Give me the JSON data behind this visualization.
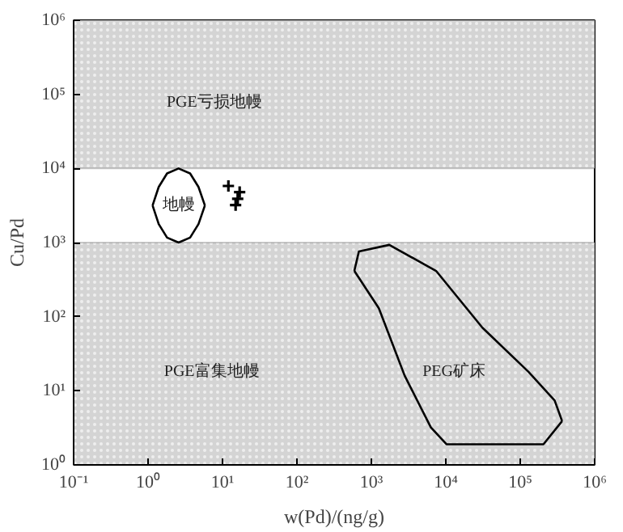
{
  "chart_data": {
    "type": "scatter",
    "xlabel": "w(Pd)/(ng/g)",
    "ylabel": "Cu/Pd",
    "log": "xy",
    "grid": false,
    "marker": "cross",
    "xlim": [
      0.1,
      1000000
    ],
    "ylim": [
      1,
      1000000
    ],
    "xticks": [
      {
        "value": 0.1,
        "label": "10⁻¹"
      },
      {
        "value": 1,
        "label": "10⁰"
      },
      {
        "value": 10,
        "label": "10¹"
      },
      {
        "value": 100,
        "label": "10²"
      },
      {
        "value": 1000,
        "label": "10³"
      },
      {
        "value": 10000,
        "label": "10⁴"
      },
      {
        "value": 100000,
        "label": "10⁵"
      },
      {
        "value": 1000000,
        "label": "10⁶"
      }
    ],
    "yticks": [
      {
        "value": 1,
        "label": "10⁰"
      },
      {
        "value": 10,
        "label": "10¹"
      },
      {
        "value": 100,
        "label": "10²"
      },
      {
        "value": 1000,
        "label": "10³"
      },
      {
        "value": 10000,
        "label": "10⁴"
      },
      {
        "value": 100000,
        "label": "10⁵"
      },
      {
        "value": 1000000,
        "label": "10⁶"
      }
    ],
    "bands": [
      {
        "axis": "y",
        "from": 10000,
        "to": 1000000,
        "color": "#d4d4d4"
      },
      {
        "axis": "y",
        "from": 1,
        "to": 1000,
        "color": "#d4d4d4"
      }
    ],
    "series": [
      {
        "color": "#000000",
        "x": [
          12,
          17,
          16,
          15
        ],
        "values": [
          5800,
          4800,
          3900,
          3200
        ]
      },
      {
        "type": "line",
        "marker": "none",
        "color": "#000000",
        "x": [
          1.15,
          1.39,
          1.8,
          2.57,
          3.67,
          4.76,
          5.8
        ],
        "values": [
          3162,
          5623,
          8570,
          10000,
          8570,
          5623,
          3162
        ]
      },
      {
        "type": "line",
        "marker": "none",
        "color": "#000000",
        "x": [
          1.15,
          1.39,
          1.8,
          2.57,
          3.67,
          4.76,
          5.8
        ],
        "values": [
          3162,
          1778,
          1167,
          1000,
          1167,
          1778,
          3162
        ]
      },
      {
        "type": "line",
        "marker": "none",
        "color": "#000000",
        "x": [
          590,
          680,
          1740,
          7400,
          31000,
          129000,
          290000,
          365000
        ],
        "values": [
          415,
          760,
          930,
          415,
          71,
          18,
          7.4,
          3.9
        ]
      },
      {
        "type": "line",
        "marker": "none",
        "color": "#000000",
        "x": [
          590,
          1260,
          2800,
          6300,
          10200,
          31000,
          205000,
          365000
        ],
        "values": [
          415,
          130,
          16,
          3.2,
          1.9,
          1.9,
          1.9,
          3.9
        ]
      }
    ],
    "annotations": [
      "PGE亏损地幔",
      "地幔",
      "PGE富集地幔",
      "PEG矿床"
    ]
  }
}
